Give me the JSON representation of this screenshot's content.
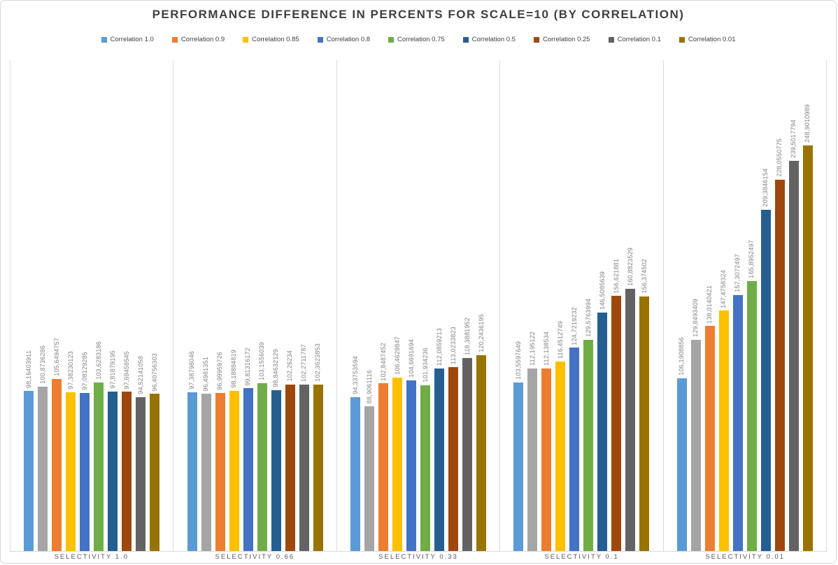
{
  "chart_data": {
    "type": "bar",
    "title": "PERFORMANCE DIFFERENCE IN PERCENTS FOR SCALE=10 (BY CORRELATION)",
    "categories": [
      "SELECTIVITY 1.0",
      "SELECTIVITY 0.66",
      "SELECTIVITY 0.33",
      "SELECTIVITY 0.1",
      "SELECTIVITY 0.01"
    ],
    "legend_position": "top",
    "value_axis_visible": false,
    "gridlines": "vertical-category-separators",
    "decimal_separator": ",",
    "series": [
      {
        "legend_label": "Correlation 1.0",
        "color": "#5B9BD5",
        "values": [
          98.16403911,
          97.38798046,
          94.33753594,
          103.5597649,
          106.1908856
        ],
        "labels": [
          "98,16403911",
          "97,38798046",
          "94,33753594",
          "103,5597649",
          "106,1908856"
        ]
      },
      {
        "legend_label": "",
        "color": "#A5A5A5",
        "values": [
          100.8736286,
          96.4981351,
          88.9061116,
          112.195122,
          129.8493409
        ],
        "labels": [
          "100,8736286",
          "96,4981351",
          "88,9061116",
          "112,195122",
          "129,8493409"
        ]
      },
      {
        "legend_label": "Correlation 0.9",
        "color": "#ED7D31",
        "values": [
          105.6494757,
          96.99959726,
          102.8487452,
          112.138534,
          138.0140421
        ],
        "labels": [
          "105,6494757",
          "96,99959726",
          "102,8487452",
          "112,138534",
          "138,0140421"
        ]
      },
      {
        "legend_label": "Correlation 0.85",
        "color": "#FFC000",
        "values": [
          97.38230123,
          98.18884819,
          106.4629847,
          116.4512749,
          147.4758324
        ],
        "labels": [
          "97,38230123",
          "98,18884819",
          "106,4629847",
          "116,4512749",
          "147,4758324"
        ]
      },
      {
        "legend_label": "Correlation 0.8",
        "color": "#4472C4",
        "values": [
          97.08129285,
          99.81316172,
          104.6691694,
          124.7219232,
          157.3072497
        ],
        "labels": [
          "97,08129285",
          "99,81316172",
          "104,6691694",
          "124,7219232",
          "157,3072497"
        ]
      },
      {
        "legend_label": "Correlation 0.75",
        "color": "#70AD47",
        "values": [
          103.6283186,
          103.1556039,
          101.934236,
          129.5763994,
          165.8952497
        ],
        "labels": [
          "103,6283186",
          "103,1556039",
          "101,934236",
          "129,5763994",
          "165,8952497"
        ]
      },
      {
        "legend_label": "Correlation 0.5",
        "color": "#255E91",
        "values": [
          97.81879195,
          98.84632129,
          112.0859213,
          146.5085639,
          209.3846154
        ],
        "labels": [
          "97,81879195",
          "98,84632129",
          "112,0859213",
          "146,5085639",
          "209,3846154"
        ]
      },
      {
        "legend_label": "Correlation 0.25",
        "color": "#9E480E",
        "values": [
          97.69458545,
          102.26234,
          113.0233823,
          156.621881,
          228.0550775
        ],
        "labels": [
          "97,69458545",
          "102,26234",
          "113,0233823",
          "156,621881",
          "228,0550775"
        ]
      },
      {
        "legend_label": "Correlation 0.1",
        "color": "#636363",
        "values": [
          94.52141058,
          102.2711787,
          118.3881952,
          160.8823529,
          239.5017794
        ],
        "labels": [
          "94,52141058",
          "102,2711787",
          "118,3881952",
          "160,8823529",
          "239,5017794"
        ]
      },
      {
        "legend_label": "Correlation 0.01",
        "color": "#997300",
        "values": [
          96.40756303,
          102.3623853,
          120.2436195,
          156.374502,
          248.9010989
        ],
        "labels": [
          "96,40756303",
          "102,3623853",
          "120,2436195",
          "156,374502",
          "248,9010989"
        ]
      }
    ]
  },
  "colors": {
    "background": "#FFFFFF",
    "border": "#D9D9D9",
    "gridline": "#DCDCDC",
    "title_text": "#404040",
    "legend_text": "#404040",
    "category_text": "#595959",
    "value_label_text": "#828282"
  }
}
